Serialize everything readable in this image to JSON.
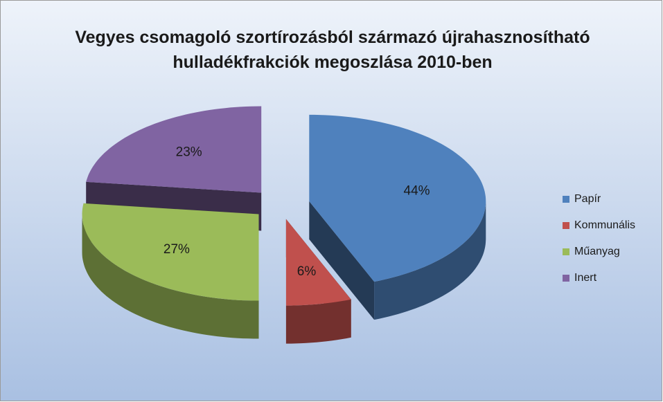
{
  "chart_data": {
    "type": "pie",
    "title": "Vegyes csomagoló szortírozásból származó újrahasznosítható hulladékfrakciók megoszlása 2010-ben",
    "categories": [
      "Papír",
      "Kommunális",
      "Műanyag",
      "Inert"
    ],
    "values": [
      44,
      6,
      27,
      23
    ],
    "value_labels": [
      "44%",
      "6%",
      "27%",
      "23%"
    ],
    "colors": [
      "#4f81bd",
      "#c0504d",
      "#9bbb59",
      "#8064a2"
    ],
    "legend": "right"
  }
}
